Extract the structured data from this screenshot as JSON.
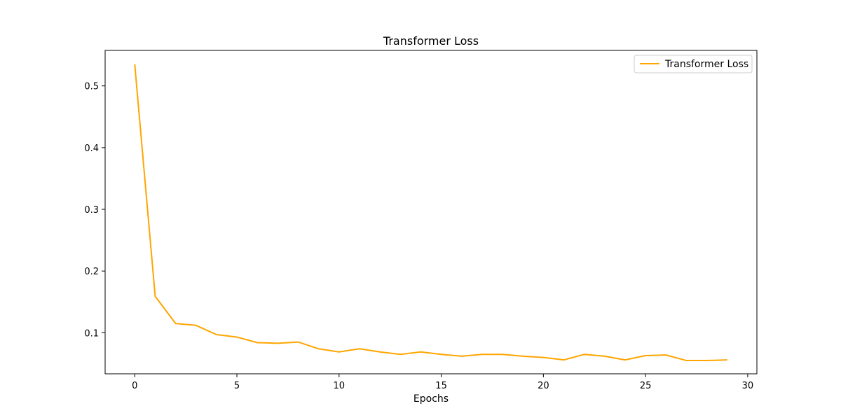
{
  "chart_data": {
    "type": "line",
    "title": "Transformer Loss",
    "xlabel": "Epochs",
    "ylabel": "",
    "xlim": [
      -1.45,
      30.45
    ],
    "ylim": [
      0.0335,
      0.5575
    ],
    "x_ticks": [
      0,
      5,
      10,
      15,
      20,
      25,
      30
    ],
    "x_tick_labels": [
      "0",
      "5",
      "10",
      "15",
      "20",
      "25",
      "30"
    ],
    "y_ticks": [
      0.1,
      0.2,
      0.3,
      0.4,
      0.5
    ],
    "y_tick_labels": [
      "0.1",
      "0.2",
      "0.3",
      "0.4",
      "0.5"
    ],
    "grid": false,
    "legend_position": "top-right",
    "series": [
      {
        "name": "Transformer Loss",
        "color": "#ffa500",
        "x": [
          0,
          1,
          2,
          3,
          4,
          5,
          6,
          7,
          8,
          9,
          10,
          11,
          12,
          13,
          14,
          15,
          16,
          17,
          18,
          19,
          20,
          21,
          22,
          23,
          24,
          25,
          26,
          27,
          28,
          29
        ],
        "values": [
          0.535,
          0.159,
          0.115,
          0.112,
          0.097,
          0.093,
          0.084,
          0.083,
          0.085,
          0.074,
          0.069,
          0.074,
          0.069,
          0.065,
          0.069,
          0.065,
          0.062,
          0.065,
          0.065,
          0.062,
          0.06,
          0.056,
          0.065,
          0.062,
          0.056,
          0.063,
          0.064,
          0.055,
          0.055,
          0.056
        ]
      }
    ]
  }
}
